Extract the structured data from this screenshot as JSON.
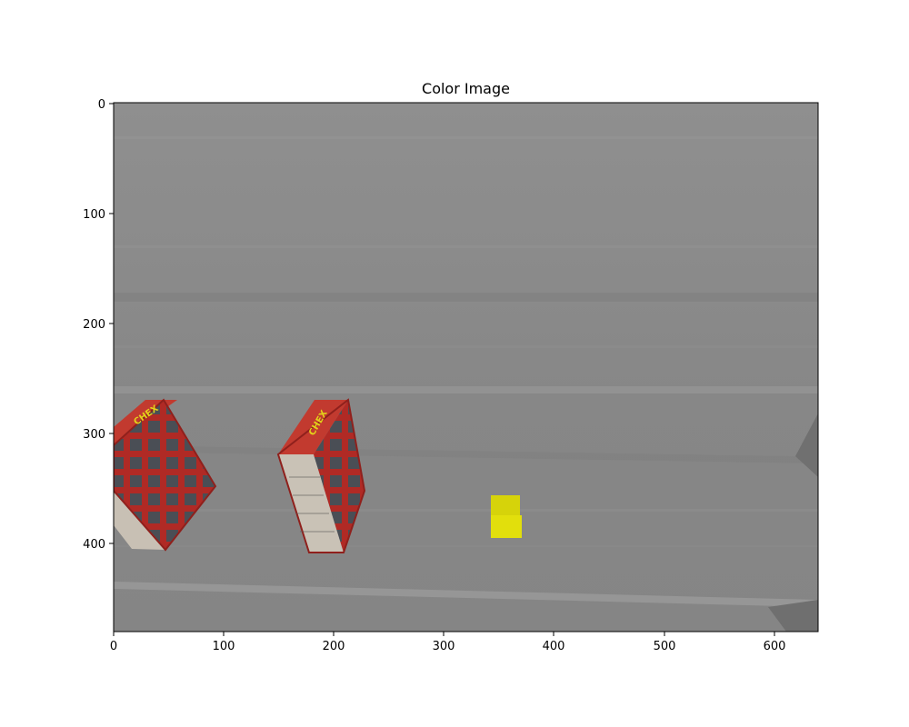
{
  "figure": {
    "title": "Color Image"
  },
  "image": {
    "description_colors": {
      "background": "#8a8a8a",
      "box_red": "#b52a26",
      "cube_yellow": "#dcd90a"
    },
    "objects": [
      {
        "name": "cereal-box",
        "label": "CHEX"
      },
      {
        "name": "cereal-box",
        "label": "CHEX"
      },
      {
        "name": "yellow-cube",
        "label": ""
      }
    ]
  },
  "axes": {
    "x_ticks": [
      "0",
      "100",
      "200",
      "300",
      "400",
      "500",
      "600"
    ],
    "y_ticks": [
      "0",
      "100",
      "200",
      "300",
      "400"
    ],
    "x_range": [
      0,
      640
    ],
    "y_range": [
      480,
      0
    ]
  }
}
